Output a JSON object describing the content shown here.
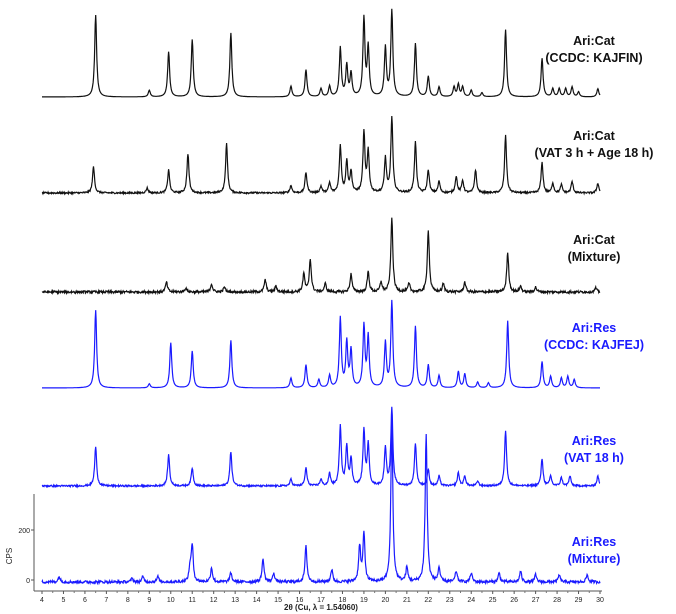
{
  "chart_data": {
    "type": "line",
    "xlabel": "2θ (Cu, λ = 1.54060)",
    "ylabel": "CPS",
    "xlim": [
      4,
      30
    ],
    "x_ticks": [
      "4",
      "5",
      "6",
      "7",
      "8",
      "9",
      "10",
      "11",
      "12",
      "13",
      "14",
      "15",
      "16",
      "17",
      "18",
      "19",
      "20",
      "21",
      "22",
      "23",
      "24",
      "25",
      "26",
      "27",
      "28",
      "29",
      "30"
    ],
    "y_ticks": [
      "0",
      "200"
    ],
    "colors": {
      "black": "#111111",
      "blue": "#1a1aff"
    },
    "series": [
      {
        "name_lines": [
          "Ari:Cat",
          "(CCDC: KAJFIN)"
        ],
        "color": "black",
        "noise": 0.0,
        "peaks": [
          [
            6.5,
            1.0
          ],
          [
            9.0,
            0.08
          ],
          [
            9.9,
            0.55
          ],
          [
            11.0,
            0.7
          ],
          [
            12.8,
            0.78
          ],
          [
            15.6,
            0.13
          ],
          [
            16.3,
            0.33
          ],
          [
            17.0,
            0.1
          ],
          [
            17.4,
            0.13
          ],
          [
            17.9,
            0.6
          ],
          [
            18.2,
            0.38
          ],
          [
            18.4,
            0.28
          ],
          [
            19.0,
            0.95
          ],
          [
            19.2,
            0.6
          ],
          [
            20.0,
            0.6
          ],
          [
            20.3,
            1.05
          ],
          [
            21.4,
            0.65
          ],
          [
            22.0,
            0.25
          ],
          [
            22.5,
            0.12
          ],
          [
            23.2,
            0.12
          ],
          [
            23.4,
            0.15
          ],
          [
            23.6,
            0.12
          ],
          [
            24.0,
            0.08
          ],
          [
            24.5,
            0.05
          ],
          [
            25.6,
            0.82
          ],
          [
            27.3,
            0.47
          ],
          [
            27.8,
            0.1
          ],
          [
            28.1,
            0.1
          ],
          [
            28.4,
            0.1
          ],
          [
            28.7,
            0.12
          ],
          [
            29.0,
            0.06
          ],
          [
            29.9,
            0.1
          ]
        ]
      },
      {
        "name_lines": [
          "Ari:Cat",
          "(VAT 3 h + Age 18 h)"
        ],
        "color": "black",
        "noise": 0.02,
        "peaks": [
          [
            6.4,
            0.32
          ],
          [
            8.9,
            0.06
          ],
          [
            9.9,
            0.28
          ],
          [
            10.8,
            0.48
          ],
          [
            12.6,
            0.6
          ],
          [
            15.6,
            0.09
          ],
          [
            16.3,
            0.25
          ],
          [
            17.0,
            0.08
          ],
          [
            17.4,
            0.12
          ],
          [
            17.9,
            0.58
          ],
          [
            18.2,
            0.38
          ],
          [
            18.4,
            0.25
          ],
          [
            19.0,
            0.73
          ],
          [
            19.2,
            0.5
          ],
          [
            20.0,
            0.42
          ],
          [
            20.3,
            0.92
          ],
          [
            21.4,
            0.62
          ],
          [
            22.0,
            0.28
          ],
          [
            22.5,
            0.14
          ],
          [
            23.3,
            0.2
          ],
          [
            23.6,
            0.15
          ],
          [
            24.2,
            0.28
          ],
          [
            25.6,
            0.7
          ],
          [
            27.3,
            0.37
          ],
          [
            27.8,
            0.12
          ],
          [
            28.2,
            0.1
          ],
          [
            28.7,
            0.14
          ],
          [
            29.9,
            0.12
          ]
        ]
      },
      {
        "name_lines": [
          "Ari:Cat",
          "(Mixture)"
        ],
        "color": "black",
        "noise": 0.03,
        "peaks": [
          [
            9.8,
            0.12
          ],
          [
            10.7,
            0.05
          ],
          [
            11.9,
            0.1
          ],
          [
            12.5,
            0.06
          ],
          [
            14.4,
            0.15
          ],
          [
            14.9,
            0.07
          ],
          [
            16.2,
            0.22
          ],
          [
            16.5,
            0.4
          ],
          [
            17.2,
            0.1
          ],
          [
            18.4,
            0.22
          ],
          [
            19.2,
            0.25
          ],
          [
            19.8,
            0.12
          ],
          [
            20.3,
            0.9
          ],
          [
            21.1,
            0.1
          ],
          [
            22.0,
            0.76
          ],
          [
            22.7,
            0.1
          ],
          [
            23.7,
            0.12
          ],
          [
            25.7,
            0.48
          ],
          [
            26.3,
            0.07
          ],
          [
            27.0,
            0.06
          ],
          [
            29.8,
            0.05
          ]
        ]
      },
      {
        "name_lines": [
          "Ari:Res",
          "(CCDC: KAJFEJ)"
        ],
        "color": "blue",
        "noise": 0.0,
        "peaks": [
          [
            6.5,
            0.95
          ],
          [
            9.0,
            0.05
          ],
          [
            10.0,
            0.55
          ],
          [
            11.0,
            0.45
          ],
          [
            12.8,
            0.58
          ],
          [
            15.6,
            0.12
          ],
          [
            16.3,
            0.28
          ],
          [
            16.9,
            0.1
          ],
          [
            17.4,
            0.15
          ],
          [
            17.9,
            0.85
          ],
          [
            18.2,
            0.55
          ],
          [
            18.4,
            0.45
          ],
          [
            19.0,
            0.75
          ],
          [
            19.2,
            0.62
          ],
          [
            20.0,
            0.55
          ],
          [
            20.3,
            1.05
          ],
          [
            21.4,
            0.75
          ],
          [
            22.0,
            0.28
          ],
          [
            22.5,
            0.15
          ],
          [
            23.4,
            0.2
          ],
          [
            23.7,
            0.17
          ],
          [
            24.3,
            0.07
          ],
          [
            24.8,
            0.06
          ],
          [
            25.7,
            0.82
          ],
          [
            27.3,
            0.32
          ],
          [
            27.7,
            0.14
          ],
          [
            28.2,
            0.12
          ],
          [
            28.5,
            0.14
          ],
          [
            28.8,
            0.1
          ]
        ]
      },
      {
        "name_lines": [
          "Ari:Res",
          "(VAT 18 h)"
        ],
        "color": "blue",
        "noise": 0.02,
        "peaks": [
          [
            6.5,
            0.48
          ],
          [
            9.9,
            0.38
          ],
          [
            11.0,
            0.22
          ],
          [
            12.8,
            0.42
          ],
          [
            15.6,
            0.08
          ],
          [
            16.3,
            0.22
          ],
          [
            17.0,
            0.08
          ],
          [
            17.4,
            0.15
          ],
          [
            17.9,
            0.73
          ],
          [
            18.2,
            0.48
          ],
          [
            18.4,
            0.32
          ],
          [
            19.0,
            0.67
          ],
          [
            19.2,
            0.5
          ],
          [
            20.0,
            0.47
          ],
          [
            20.3,
            0.95
          ],
          [
            21.4,
            0.52
          ],
          [
            22.0,
            0.2
          ],
          [
            22.5,
            0.12
          ],
          [
            23.4,
            0.16
          ],
          [
            23.7,
            0.12
          ],
          [
            24.3,
            0.06
          ],
          [
            25.6,
            0.68
          ],
          [
            27.3,
            0.33
          ],
          [
            27.7,
            0.12
          ],
          [
            28.2,
            0.1
          ],
          [
            28.6,
            0.12
          ],
          [
            29.9,
            0.12
          ]
        ]
      },
      {
        "name_lines": [
          "Ari:Res",
          "(Mixture)"
        ],
        "color": "blue",
        "noise": 0.015,
        "peaks": [
          [
            4.8,
            0.03
          ],
          [
            8.2,
            0.02
          ],
          [
            8.7,
            0.03
          ],
          [
            9.4,
            0.03
          ],
          [
            10.9,
            0.08
          ],
          [
            11.0,
            0.2
          ],
          [
            11.9,
            0.08
          ],
          [
            12.8,
            0.05
          ],
          [
            14.3,
            0.13
          ],
          [
            14.8,
            0.05
          ],
          [
            16.3,
            0.2
          ],
          [
            17.5,
            0.07
          ],
          [
            18.8,
            0.2
          ],
          [
            19.0,
            0.27
          ],
          [
            20.3,
            0.9
          ],
          [
            21.0,
            0.08
          ],
          [
            21.9,
            0.83
          ],
          [
            22.5,
            0.08
          ],
          [
            23.3,
            0.06
          ],
          [
            24.0,
            0.05
          ],
          [
            25.3,
            0.05
          ],
          [
            26.3,
            0.06
          ],
          [
            27.0,
            0.04
          ],
          [
            28.1,
            0.04
          ],
          [
            29.4,
            0.04
          ]
        ]
      }
    ]
  }
}
